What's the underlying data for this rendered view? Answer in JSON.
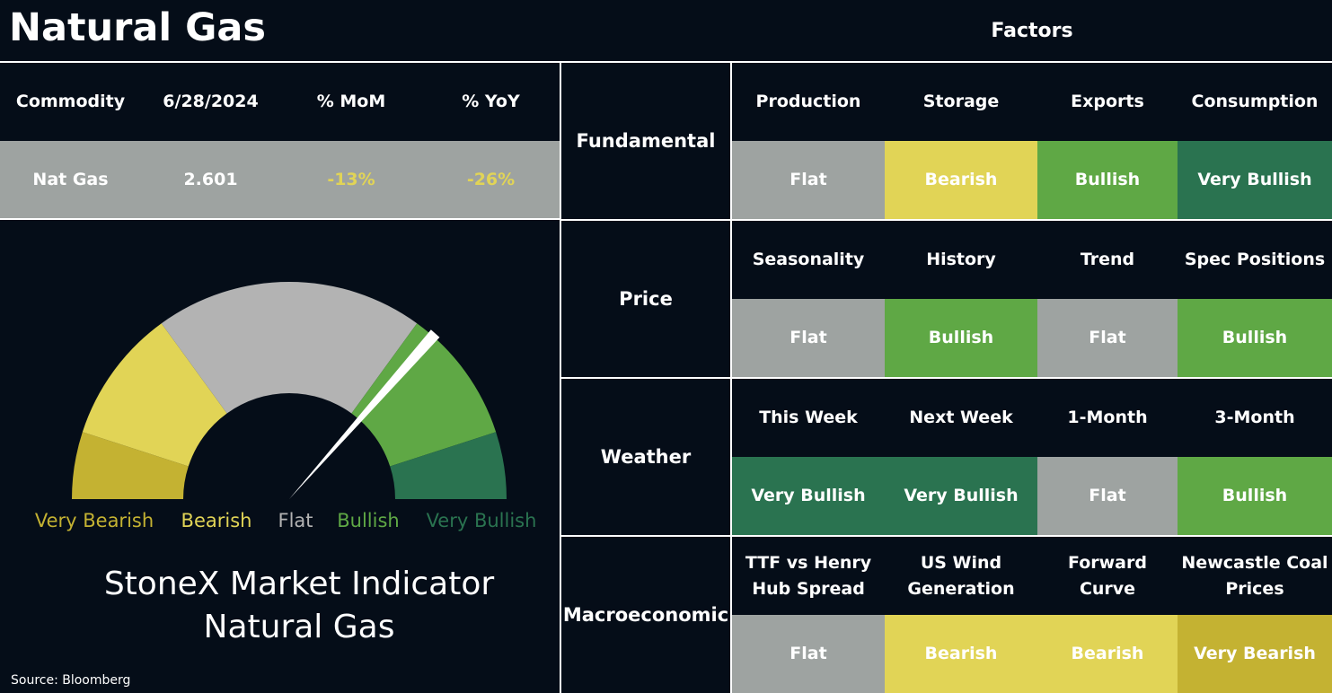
{
  "header": {
    "title": "Natural Gas",
    "factors_title": "Factors"
  },
  "commodity_table": {
    "columns": [
      "Commodity",
      "6/28/2024",
      "% MoM",
      "% YoY"
    ],
    "row": [
      "Nat Gas",
      "2.601",
      "-13%",
      "-26%"
    ],
    "row_colors": [
      "#ffffff",
      "#ffffff",
      "#e1d456",
      "#e1d456"
    ],
    "row_background": "#9ea3a1"
  },
  "gauge": {
    "min": 0,
    "max": 100,
    "needle": 73,
    "segments": [
      {
        "label": "Very Bearish",
        "color": "#c4b232",
        "end": 10
      },
      {
        "label": "Bearish",
        "color": "#e1d456",
        "end": 30
      },
      {
        "label": "Flat",
        "color": "#b3b3b3",
        "end": 70
      },
      {
        "label": "Bullish",
        "color": "#5fa845",
        "end": 90
      },
      {
        "label": "Very Bullish",
        "color": "#2a7350",
        "end": 100
      }
    ]
  },
  "indicator_title": [
    "StoneX Market Indicator",
    "Natural Gas"
  ],
  "source": "Source: Bloomberg",
  "signal_colors": {
    "Flat": "#9ea3a1",
    "Bearish": "#e1d456",
    "Bullish": "#5fa845",
    "Very Bullish": "#2a7350",
    "Very Bearish": "#c4b232"
  },
  "factors": [
    {
      "category": "Fundamental",
      "items": [
        {
          "name": [
            "Production"
          ],
          "signal": "Flat"
        },
        {
          "name": [
            "Storage"
          ],
          "signal": "Bearish"
        },
        {
          "name": [
            "Exports"
          ],
          "signal": "Bullish"
        },
        {
          "name": [
            "Consumption"
          ],
          "signal": "Very Bullish"
        }
      ]
    },
    {
      "category": "Price",
      "items": [
        {
          "name": [
            "Seasonality"
          ],
          "signal": "Flat"
        },
        {
          "name": [
            "History"
          ],
          "signal": "Bullish"
        },
        {
          "name": [
            "Trend"
          ],
          "signal": "Flat"
        },
        {
          "name": [
            "Spec Positions"
          ],
          "signal": "Bullish"
        }
      ]
    },
    {
      "category": "Weather",
      "items": [
        {
          "name": [
            "This Week"
          ],
          "signal": "Very Bullish"
        },
        {
          "name": [
            "Next Week"
          ],
          "signal": "Very Bullish"
        },
        {
          "name": [
            "1-Month"
          ],
          "signal": "Flat"
        },
        {
          "name": [
            "3-Month"
          ],
          "signal": "Bullish"
        }
      ]
    },
    {
      "category": "Macroeconomic",
      "items": [
        {
          "name": [
            "TTF vs Henry",
            "Hub Spread"
          ],
          "signal": "Flat"
        },
        {
          "name": [
            "US Wind",
            "Generation"
          ],
          "signal": "Bearish"
        },
        {
          "name": [
            "Forward",
            "Curve"
          ],
          "signal": "Bearish"
        },
        {
          "name": [
            "Newcastle Coal",
            "Prices"
          ],
          "signal": "Very Bearish"
        }
      ]
    }
  ]
}
